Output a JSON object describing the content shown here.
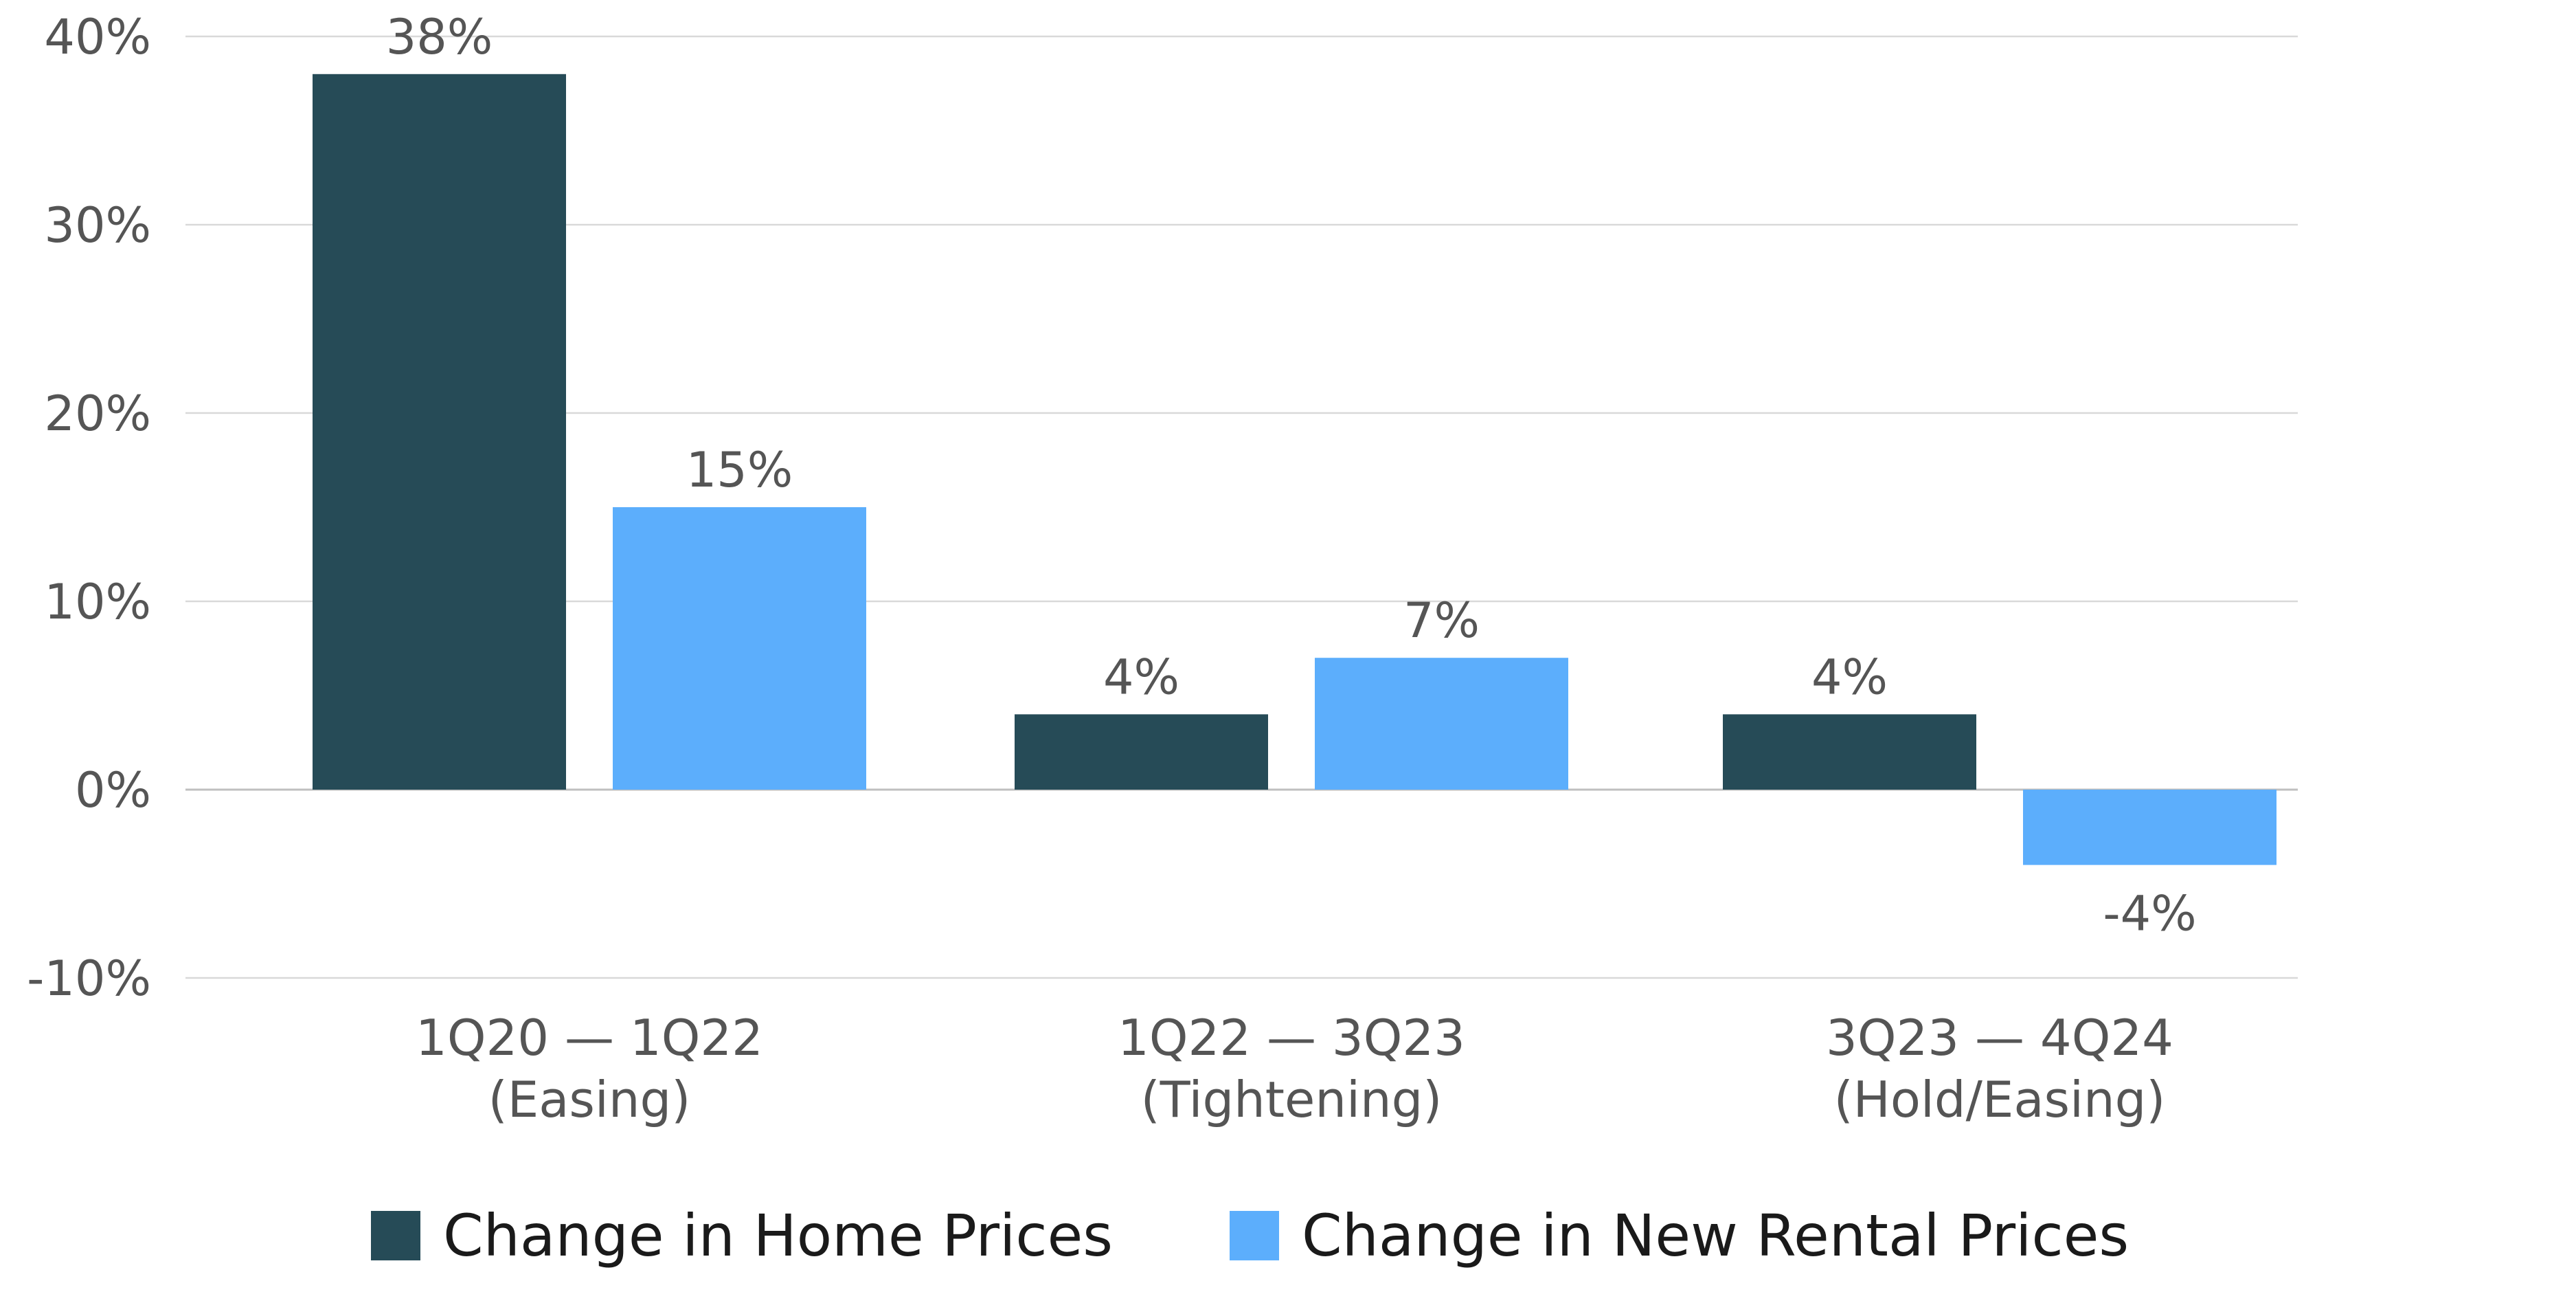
{
  "chart_data": {
    "type": "bar",
    "categories": [
      [
        "1Q20 — 1Q22",
        "(Easing)"
      ],
      [
        "1Q22 — 3Q23",
        "(Tightening)"
      ],
      [
        "3Q23 — 4Q24",
        "(Hold/Easing)"
      ]
    ],
    "series": [
      {
        "name": "Change in Home Prices",
        "color": "#264b57",
        "values": [
          38,
          4,
          4
        ],
        "labels": [
          "38%",
          "4%",
          "4%"
        ]
      },
      {
        "name": "Change in New Rental Prices",
        "color": "#5caefc",
        "values": [
          15,
          7,
          -4
        ],
        "labels": [
          "15%",
          "7%",
          "-4%"
        ]
      }
    ],
    "ylim": [
      -10,
      40
    ],
    "yticks": [
      40,
      30,
      20,
      10,
      0,
      -10
    ],
    "ytick_labels": [
      "40%",
      "30%",
      "20%",
      "10%",
      "0%",
      "-10%"
    ],
    "grid": true,
    "legend": "bottom",
    "title": "",
    "xlabel": "",
    "ylabel": ""
  }
}
